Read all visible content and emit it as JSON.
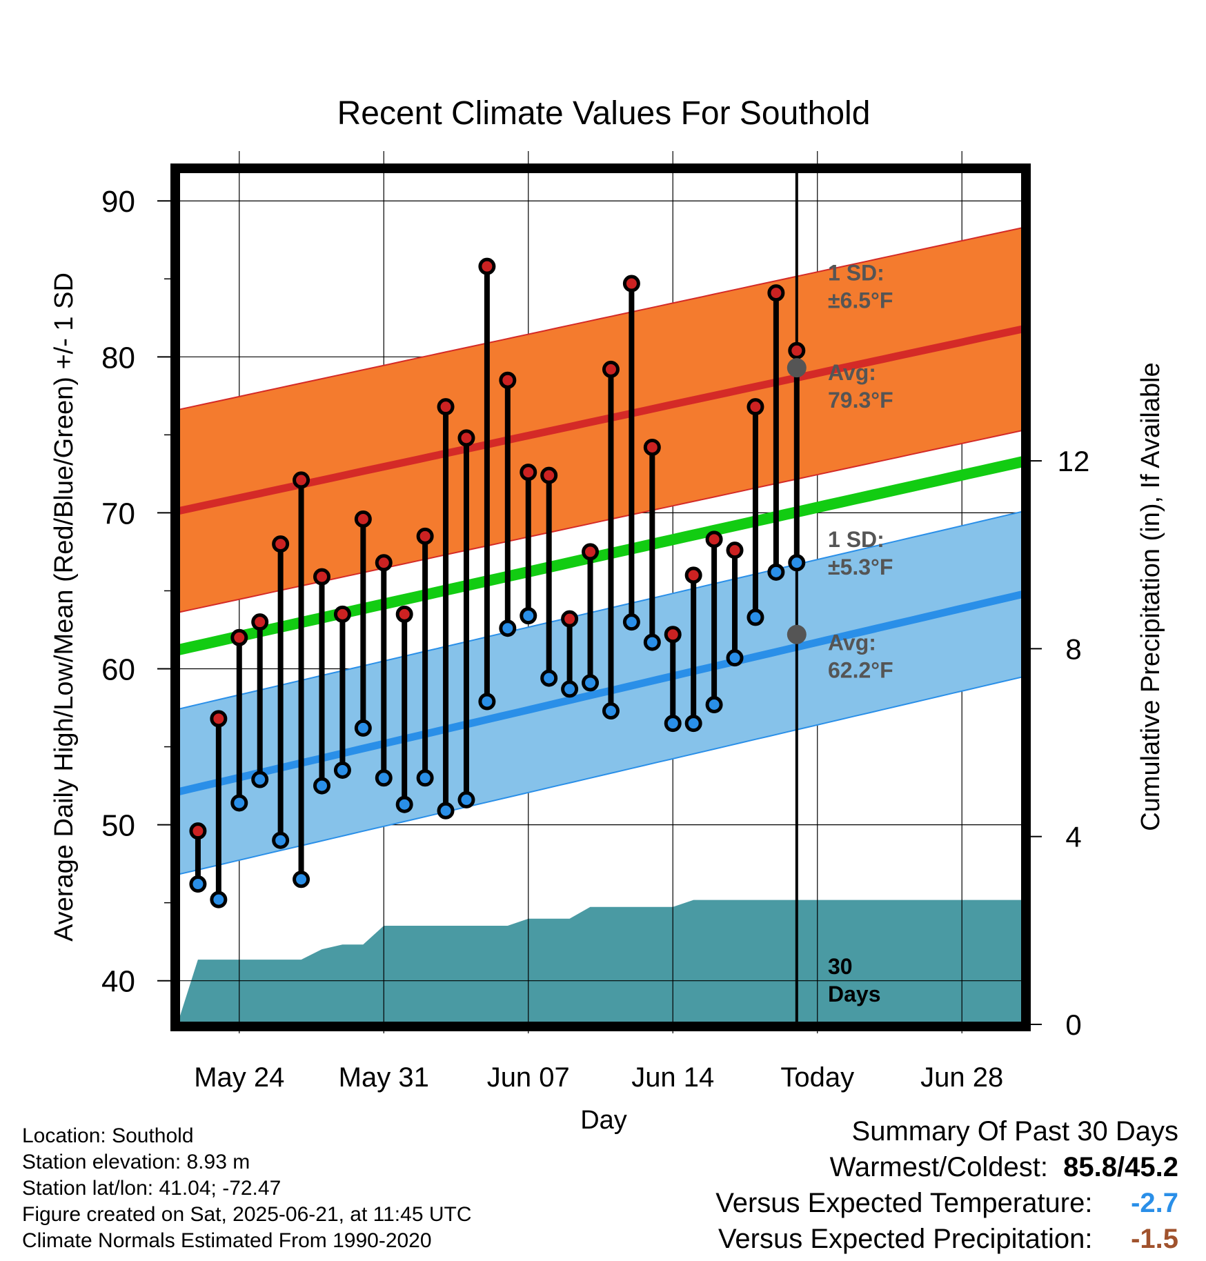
{
  "chart_data": {
    "type": "line",
    "title": "Recent Climate Values For Southold",
    "xlabel": "Day",
    "ylabel": "Average Daily High/Low/Mean (Red/Blue/Green) +/- 1 SD",
    "y2label": "Cumulative Precipitation (in), If Available",
    "x_ticks": [
      "May 24",
      "May 31",
      "Jun 07",
      "Jun 14",
      "Today",
      "Jun 28"
    ],
    "ylim": [
      37.2,
      92
    ],
    "y_ticks": [
      40,
      50,
      60,
      70,
      80,
      90
    ],
    "y2lim": [
      0,
      18.2
    ],
    "y2_ticks": [
      0,
      4,
      8,
      12
    ],
    "x_domain": [
      "May 21",
      "Jul 01"
    ],
    "today_index": 30,
    "observations": {
      "days": [
        1,
        2,
        3,
        4,
        5,
        6,
        7,
        8,
        9,
        10,
        11,
        12,
        13,
        14,
        15,
        16,
        17,
        18,
        19,
        20,
        21,
        22,
        23,
        24,
        25,
        26,
        27,
        28,
        29
      ],
      "high": [
        49.6,
        56.8,
        62.0,
        63.0,
        68.0,
        72.1,
        65.9,
        63.5,
        69.6,
        66.8,
        63.5,
        68.5,
        76.8,
        74.8,
        85.8,
        78.5,
        72.6,
        72.4,
        63.2,
        67.5,
        79.2,
        84.7,
        74.2,
        62.2,
        66.0,
        68.3,
        67.6,
        76.8,
        84.1
      ],
      "low": [
        46.2,
        45.2,
        51.4,
        52.9,
        49.0,
        46.5,
        52.5,
        53.5,
        56.2,
        53.0,
        51.3,
        53.0,
        50.9,
        51.6,
        57.9,
        62.6,
        63.4,
        59.4,
        58.7,
        59.1,
        57.3,
        63.0,
        61.7,
        56.5,
        56.5,
        57.7,
        60.7,
        63.3,
        66.2
      ]
    },
    "extra_observation": {
      "day": 30,
      "high": 80.4,
      "low": 66.8
    },
    "normal_high": {
      "start": 70.1,
      "end": 81.8,
      "sd": 6.5
    },
    "normal_low": {
      "start": 52.1,
      "end": 64.8,
      "sd": 5.3
    },
    "normal_mean": {
      "start": 61.2,
      "end": 73.3
    },
    "cumulative_precip": {
      "days": [
        0,
        1,
        2,
        3,
        4,
        5,
        6,
        7,
        8,
        9,
        10,
        11,
        12,
        13,
        14,
        15,
        16,
        17,
        18,
        19,
        20,
        21,
        22,
        23,
        24,
        25,
        26,
        27,
        28,
        29,
        30,
        31,
        32,
        33,
        34,
        35,
        36,
        37,
        38,
        39,
        40,
        41
      ],
      "values": [
        0.0,
        1.38,
        1.38,
        1.38,
        1.38,
        1.38,
        1.38,
        1.6,
        1.7,
        1.7,
        2.1,
        2.1,
        2.1,
        2.1,
        2.1,
        2.1,
        2.1,
        2.25,
        2.25,
        2.25,
        2.5,
        2.5,
        2.5,
        2.5,
        2.5,
        2.65,
        2.65,
        2.65,
        2.65,
        2.65,
        2.65,
        2.65,
        2.65,
        2.65,
        2.65,
        2.65,
        2.65,
        2.65,
        2.65,
        2.65,
        2.65,
        2.65
      ]
    },
    "annotations": {
      "high_sd": [
        "1 SD:",
        "±6.5°F"
      ],
      "high_avg": [
        "Avg:",
        "79.3°F"
      ],
      "low_sd": [
        "1 SD:",
        "±5.3°F"
      ],
      "low_avg": [
        "Avg:",
        "62.2°F"
      ],
      "precip_period": [
        "30",
        "Days"
      ]
    },
    "colors": {
      "high_band": "#f47b2e",
      "high_line": "#d42a27",
      "low_band": "#86c2ea",
      "low_line": "#2a8fe8",
      "mean_line": "#12cc12",
      "precip": "#4a9aa3",
      "high_dot": "#cc2222",
      "low_dot": "#2a8fe8",
      "today_dot": "#555555",
      "annotation": "#555555"
    }
  },
  "info": {
    "location": "Location: Southold",
    "elevation": "Station elevation: 8.93 m",
    "latlon": "Station lat/lon: 41.04; -72.47",
    "created": "Figure created on Sat, 2025-06-21, at 11:45 UTC",
    "normals": "Climate Normals Estimated From 1990-2020"
  },
  "summary": {
    "title": "Summary Of Past 30 Days",
    "warm_cold_label": "Warmest/Coldest:",
    "warm_cold_value": "85.8/45.2",
    "temp_label": "Versus Expected Temperature:",
    "temp_value": "-2.7",
    "prcp_label": "Versus Expected Precipitation:",
    "prcp_value": "-1.5"
  }
}
